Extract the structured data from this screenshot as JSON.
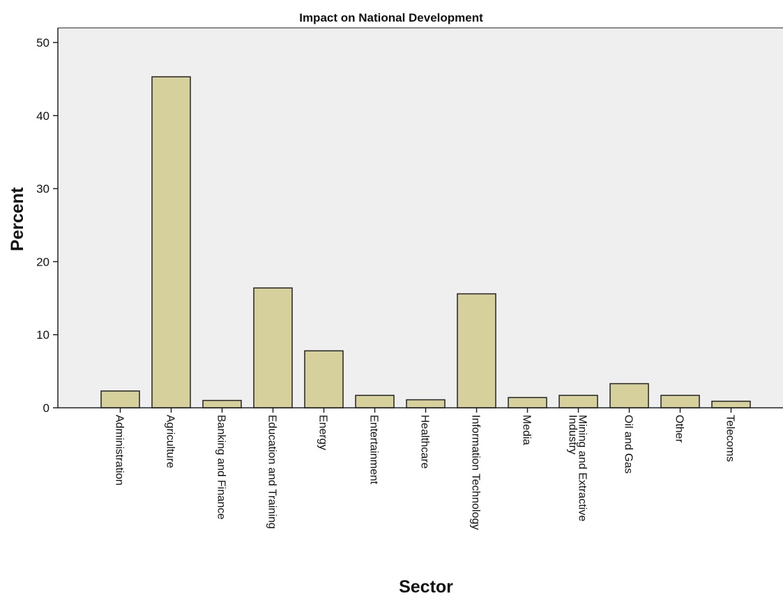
{
  "chart_data": {
    "type": "bar",
    "title": "Impact on National Development",
    "xlabel": "Sector",
    "ylabel": "Percent",
    "ylim": [
      0,
      52
    ],
    "yticks": [
      0,
      10,
      20,
      30,
      40,
      50
    ],
    "grid": false,
    "categories": [
      "Administration",
      "Agriculture",
      "Banking and Finance",
      "Education and Training",
      "Energy",
      "Entertainment",
      "Healthcare",
      "Information Technology",
      "Media",
      "Mining and Extractive Industry",
      "Oil and Gas",
      "Other",
      "Telecoms"
    ],
    "category_lines": [
      [
        "Administration"
      ],
      [
        "Agriculture"
      ],
      [
        "Banking and Finance"
      ],
      [
        "Education and Training"
      ],
      [
        "Energy"
      ],
      [
        "Entertainment"
      ],
      [
        "Healthcare"
      ],
      [
        "Information Technology"
      ],
      [
        "Media"
      ],
      [
        "Mining and Extractive",
        "Industry"
      ],
      [
        "Oil and Gas"
      ],
      [
        "Other"
      ],
      [
        "Telecoms"
      ]
    ],
    "values": [
      2.3,
      45.3,
      1.0,
      16.4,
      7.8,
      1.7,
      1.1,
      15.6,
      1.4,
      1.7,
      3.3,
      1.7,
      0.9
    ],
    "colors": {
      "bar_fill": "#d6d09c",
      "bar_stroke": "#222222",
      "plot_background": "#efefef",
      "axis": "#222222"
    }
  }
}
